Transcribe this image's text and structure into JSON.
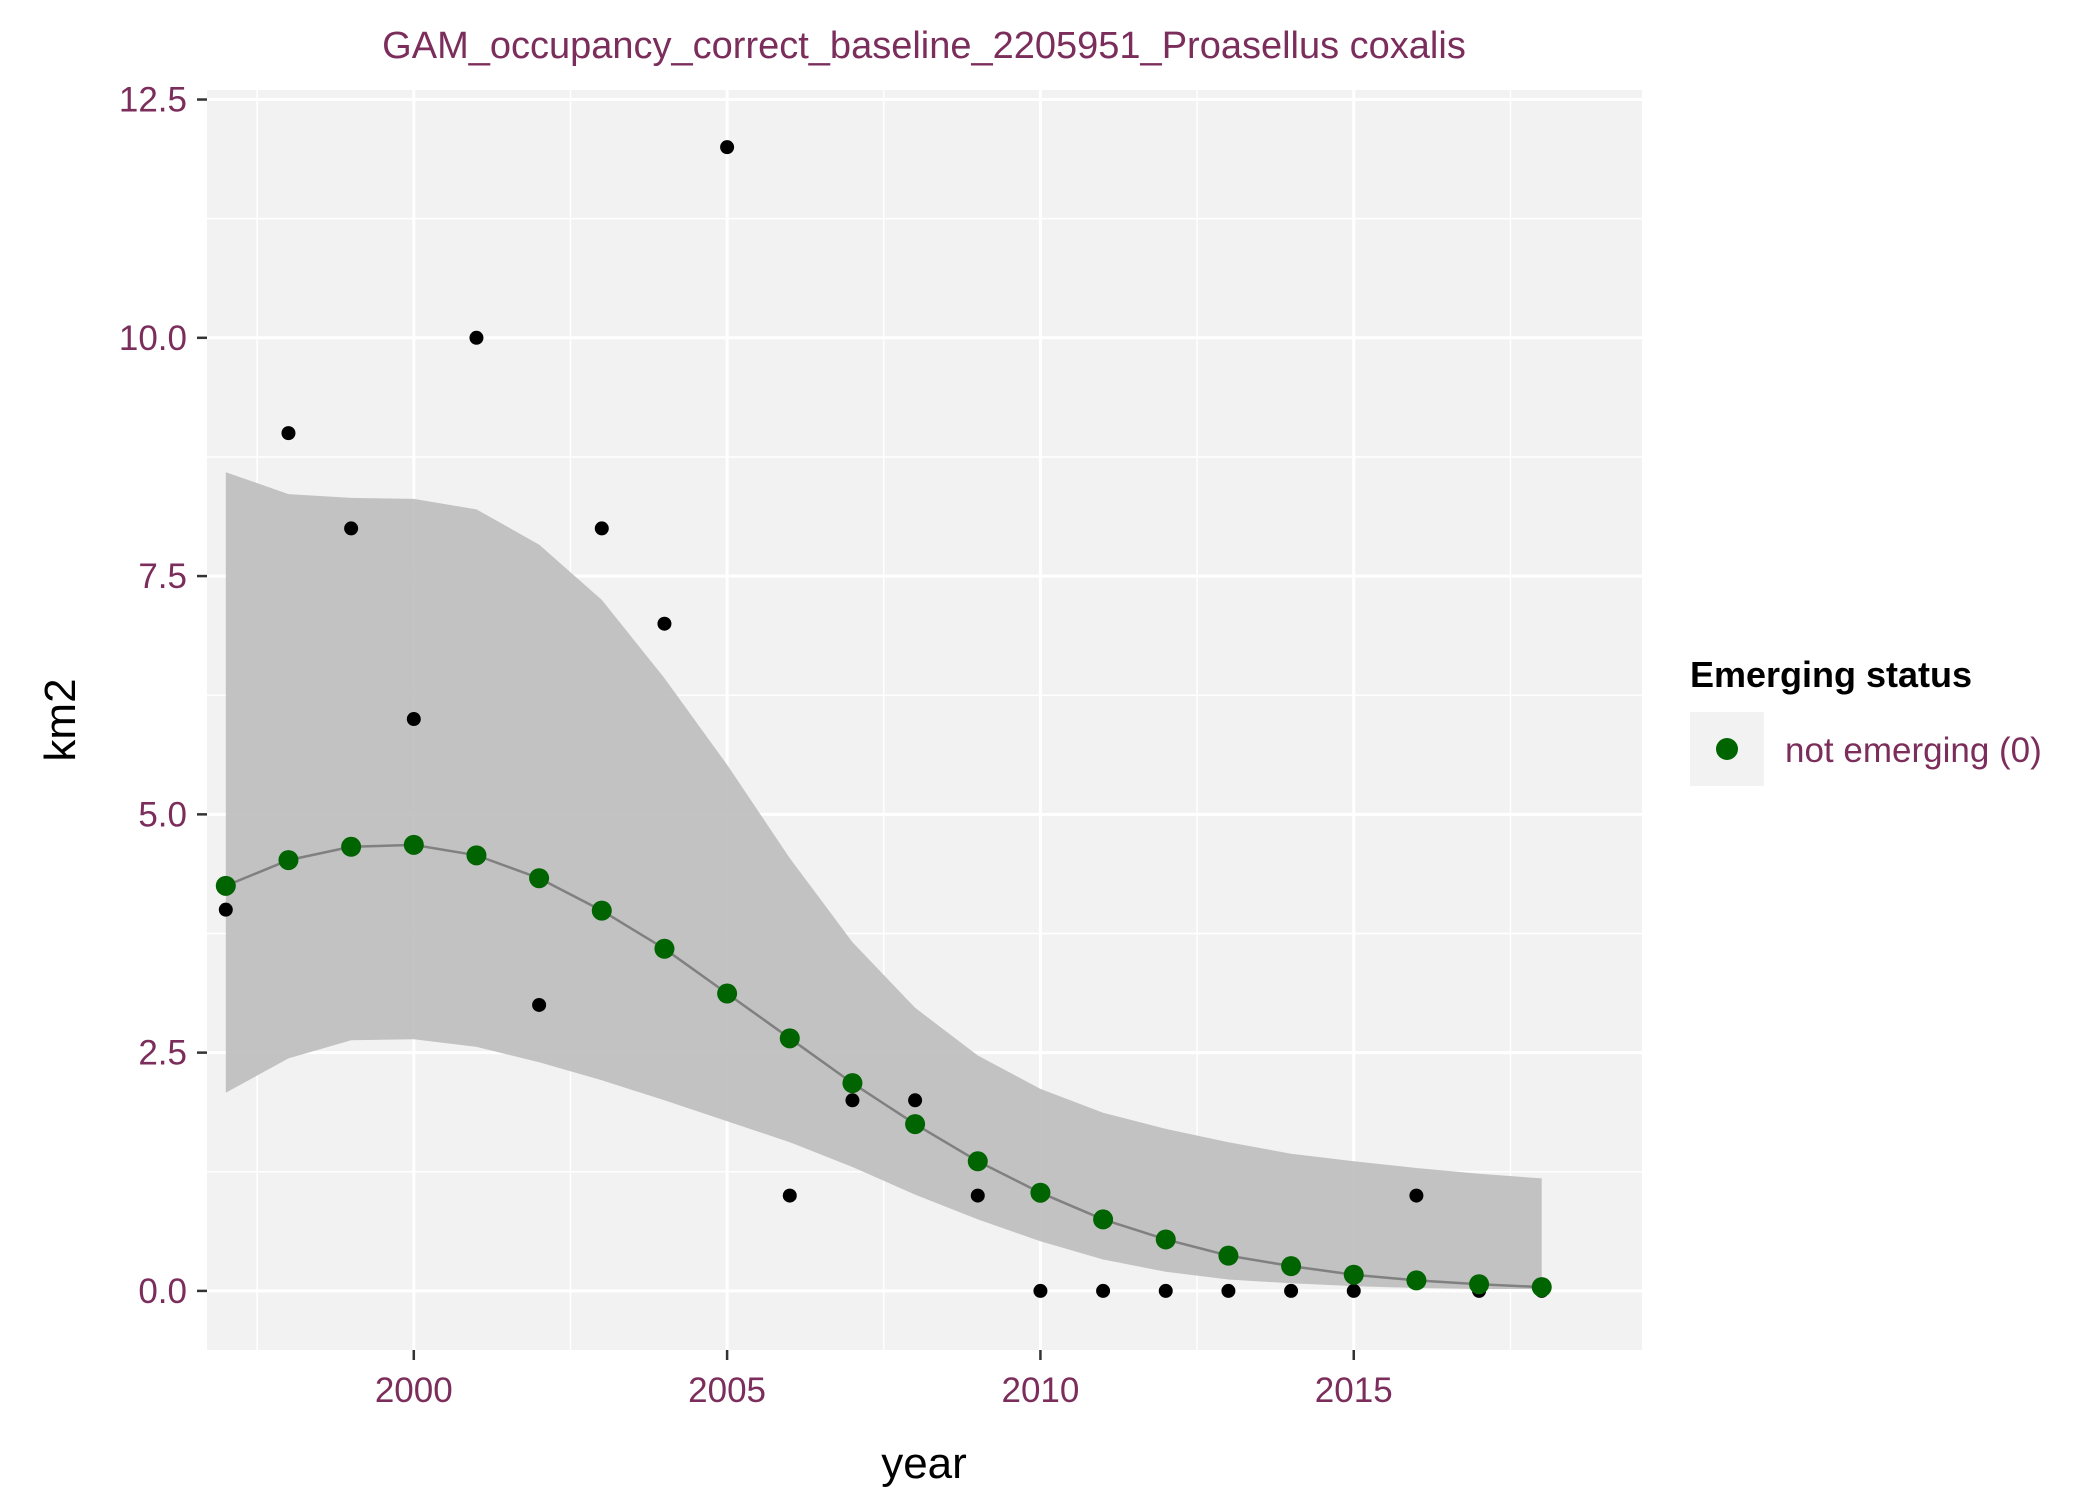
{
  "chart_data": {
    "type": "scatter",
    "title": "GAM_occupancy_correct_baseline_2205951_Proasellus coxalis",
    "xlabel": "year",
    "ylabel": "km2",
    "xlim": [
      1996.7,
      2019.6
    ],
    "ylim": [
      -0.62,
      12.6
    ],
    "x_ticks": [
      2000,
      2005,
      2010,
      2015
    ],
    "x_tick_labels": [
      "2000",
      "2005",
      "2010",
      "2015"
    ],
    "y_ticks": [
      0,
      2.5,
      5,
      7.5,
      10,
      12.5
    ],
    "y_tick_labels": [
      "0.0",
      "2.5",
      "5.0",
      "7.5",
      "10.0",
      "12.5"
    ],
    "grid": true,
    "legend": {
      "title": "Emerging status",
      "position": "right",
      "entries": [
        {
          "label": "not emerging (0)",
          "color": "#006400"
        }
      ]
    },
    "observed": {
      "x": [
        1997,
        1998,
        1999,
        2000,
        2001,
        2002,
        2003,
        2004,
        2005,
        2006,
        2007,
        2008,
        2009,
        2010,
        2011,
        2012,
        2013,
        2014,
        2015,
        2016,
        2017,
        2018
      ],
      "y": [
        4,
        9,
        8,
        6,
        10,
        3,
        8,
        7,
        12,
        1,
        2,
        2,
        1,
        0,
        0,
        0,
        0,
        0,
        0,
        1,
        0,
        0
      ],
      "color": "#000000"
    },
    "series": [
      {
        "name": "not emerging (0)",
        "x": [
          1997,
          1998,
          1999,
          2000,
          2001,
          2002,
          2003,
          2004,
          2005,
          2006,
          2007,
          2008,
          2009,
          2010,
          2011,
          2012,
          2013,
          2014,
          2015,
          2016,
          2017,
          2018
        ],
        "y": [
          4.25,
          4.52,
          4.66,
          4.68,
          4.57,
          4.33,
          3.99,
          3.59,
          3.12,
          2.65,
          2.18,
          1.75,
          1.36,
          1.03,
          0.75,
          0.54,
          0.37,
          0.26,
          0.17,
          0.11,
          0.07,
          0.04
        ],
        "color": "#006400"
      }
    ],
    "confidence_band": {
      "x": [
        1997,
        1998,
        1999,
        2000,
        2001,
        2002,
        2003,
        2004,
        2005,
        2006,
        2007,
        2008,
        2009,
        2010,
        2011,
        2012,
        2013,
        2014,
        2015,
        2016,
        2017,
        2018
      ],
      "lower": [
        2.08,
        2.44,
        2.63,
        2.64,
        2.56,
        2.4,
        2.21,
        2.0,
        1.78,
        1.56,
        1.3,
        1.01,
        0.75,
        0.52,
        0.33,
        0.2,
        0.12,
        0.08,
        0.05,
        0.03,
        0.02,
        0.02
      ],
      "upper": [
        8.59,
        8.36,
        8.32,
        8.31,
        8.2,
        7.83,
        7.25,
        6.43,
        5.52,
        4.54,
        3.66,
        2.97,
        2.47,
        2.12,
        1.87,
        1.7,
        1.56,
        1.44,
        1.36,
        1.29,
        1.23,
        1.18
      ],
      "color": "#bdbdbd"
    }
  }
}
